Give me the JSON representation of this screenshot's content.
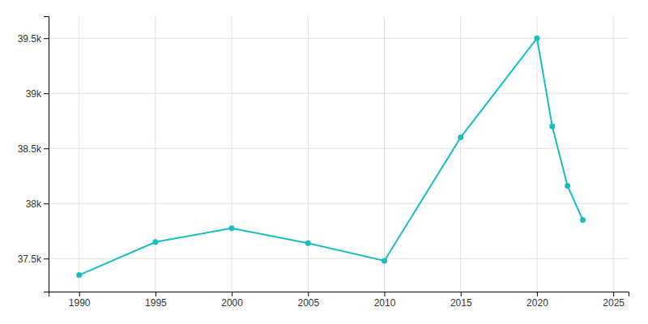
{
  "chart_data": {
    "type": "line",
    "x": [
      1990,
      1995,
      2000,
      2005,
      2010,
      2015,
      2020,
      2021,
      2022,
      2023
    ],
    "values": [
      37350,
      37650,
      37775,
      37640,
      37480,
      38600,
      39500,
      38700,
      38160,
      37850
    ],
    "color": "#17bebb",
    "marker": "circle",
    "xlim": [
      1988,
      2026
    ],
    "ylim": [
      37200,
      39700
    ],
    "xticks": [
      1990,
      1995,
      2000,
      2005,
      2010,
      2015,
      2020,
      2025
    ],
    "yticks": [
      {
        "value": 37500,
        "label": "37.5k"
      },
      {
        "value": 38000,
        "label": "38k"
      },
      {
        "value": 38500,
        "label": "38.5k"
      },
      {
        "value": 39000,
        "label": "39k"
      },
      {
        "value": 39500,
        "label": "39.5k"
      }
    ],
    "grid": true
  }
}
